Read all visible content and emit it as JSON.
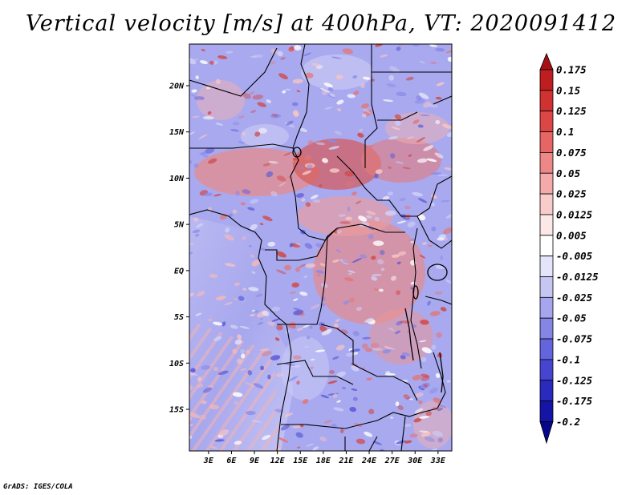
{
  "title": "Vertical velocity [m/s] at 400hPa, VT: 2020091412",
  "credit": "GrADS: IGES/COLA",
  "map": {
    "lat_labels": [
      "20N",
      "15N",
      "10N",
      "5N",
      "EQ",
      "5S",
      "10S",
      "15S"
    ],
    "lat_values": [
      20,
      15,
      10,
      5,
      0,
      -5,
      -10,
      -15
    ],
    "lon_labels": [
      "3E",
      "6E",
      "9E",
      "12E",
      "15E",
      "18E",
      "21E",
      "24E",
      "27E",
      "30E",
      "33E"
    ],
    "lon_values": [
      3,
      6,
      9,
      12,
      15,
      18,
      21,
      24,
      27,
      30,
      33
    ],
    "lat_range": [
      -19.5,
      24.5
    ],
    "lon_range": [
      0.5,
      34.8
    ]
  },
  "colorbar": {
    "labels": [
      "0.175",
      "0.15",
      "0.125",
      "0.1",
      "0.075",
      "0.05",
      "0.025",
      "0.0125",
      "0.005",
      "-0.005",
      "-0.0125",
      "-0.025",
      "-0.05",
      "-0.075",
      "-0.1",
      "-0.125",
      "-0.175",
      "-0.2"
    ],
    "colors": [
      "#a50f15",
      "#be1e22",
      "#d03131",
      "#dc4646",
      "#e66565",
      "#ee8787",
      "#f4aaaa",
      "#f9cccc",
      "#fde8e8",
      "#ffffff",
      "#e4e4fb",
      "#c6c6f4",
      "#a6a6ee",
      "#8585e6",
      "#6464dc",
      "#4545cf",
      "#2a2abe",
      "#1414a6",
      "#06068a"
    ]
  }
}
